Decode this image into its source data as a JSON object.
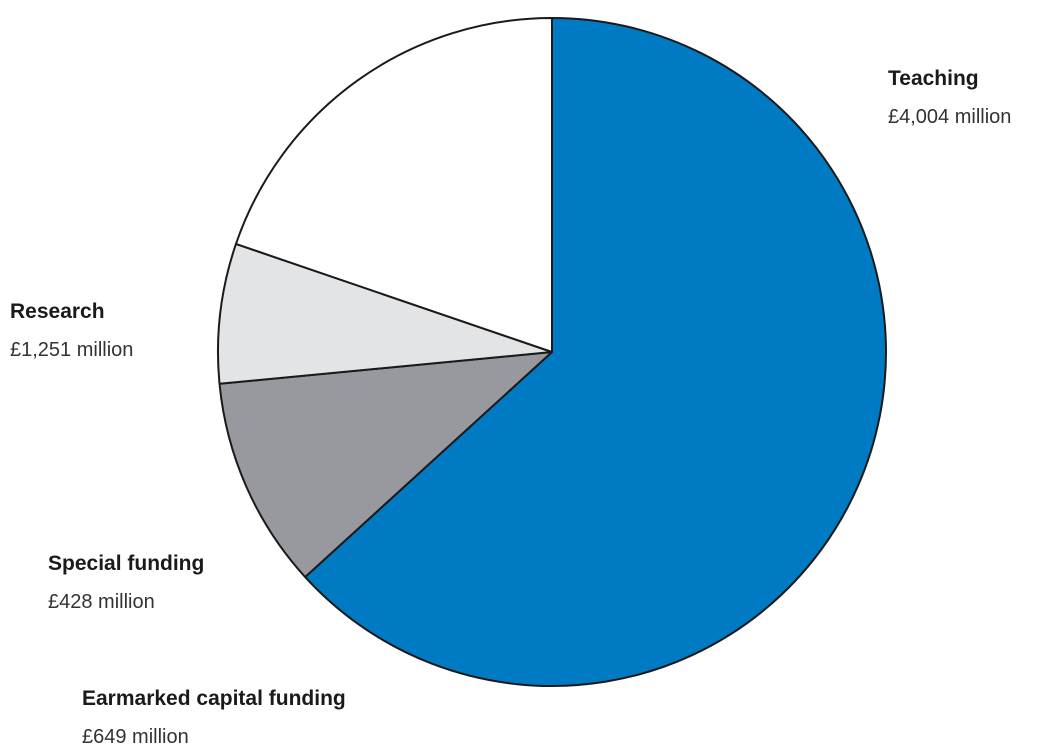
{
  "chart_data": {
    "type": "pie",
    "title": "",
    "slices": [
      {
        "name": "Teaching",
        "value": 4004,
        "value_label": "£4,004 million",
        "color": "#007ac3"
      },
      {
        "name": "Earmarked capital funding",
        "value": 649,
        "value_label": "£649 million",
        "color": "#97999e"
      },
      {
        "name": "Special funding",
        "value": 428,
        "value_label": "£428 million",
        "color": "#e3e4e6"
      },
      {
        "name": "Research",
        "value": 1251,
        "value_label": "£1,251 million",
        "color": "#ffffff"
      }
    ],
    "unit": "£ million",
    "start_angle": "12 o'clock",
    "direction": "clockwise",
    "legend": "none",
    "label_position": "outside"
  }
}
